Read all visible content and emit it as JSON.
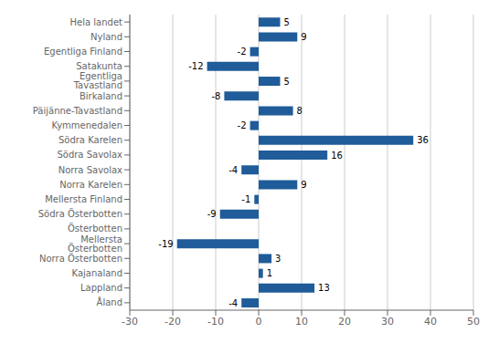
{
  "chart_data": {
    "type": "bar",
    "orientation": "horizontal",
    "categories": [
      "Hela landet",
      "Nyland",
      "Egentliga Finland",
      "Satakunta",
      "Egentliga Tavastland",
      "Birkaland",
      "Päijänne-Tavastland",
      "Kymmenedalen",
      "Södra Karelen",
      "Södra Savolax",
      "Norra Savolax",
      "Norra Karelen",
      "Mellersta Finland",
      "Södra Österbotten",
      "Österbotten",
      "Mellersta Österbotten",
      "Norra Österbotten",
      "Kajanaland",
      "Lappland",
      "Åland"
    ],
    "values": [
      5,
      9,
      -2,
      -12,
      5,
      -8,
      8,
      -2,
      36,
      16,
      -4,
      9,
      -1,
      -9,
      0,
      -19,
      3,
      1,
      13,
      -4
    ],
    "color": "#1F5C99",
    "xlim": [
      -30,
      50
    ],
    "xticks": [
      -30,
      -20,
      -10,
      0,
      10,
      20,
      30,
      40,
      50
    ],
    "grid": true,
    "data_labels": true
  }
}
